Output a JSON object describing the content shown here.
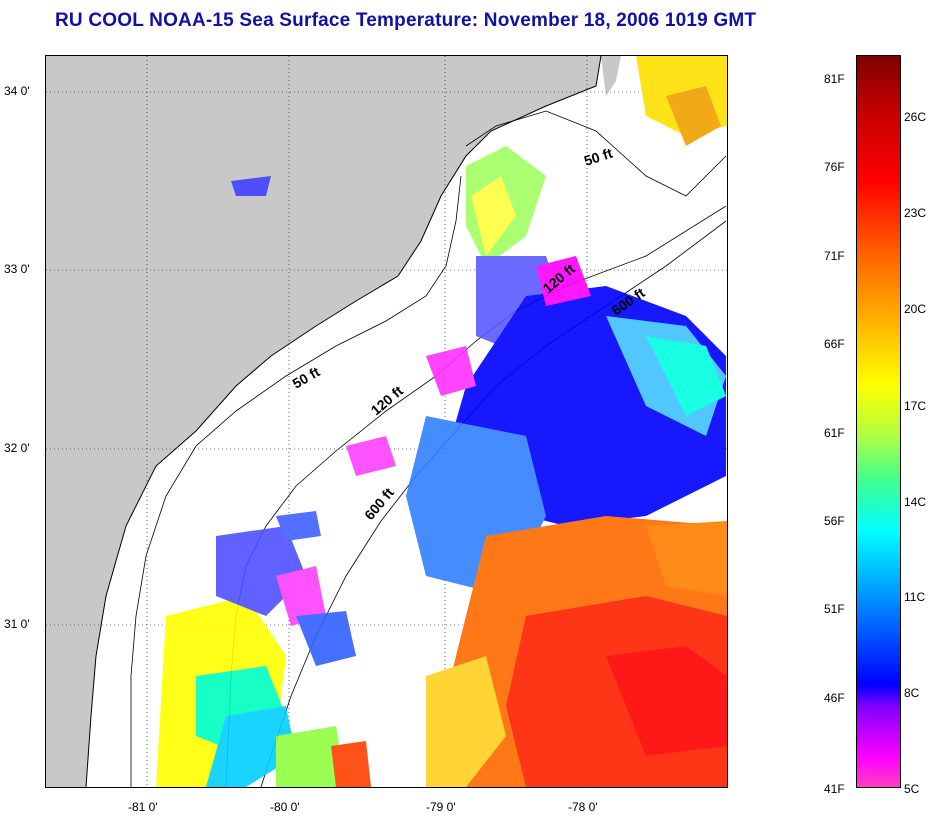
{
  "title": "RU COOL  NOAA-15  Sea Surface Temperature:  November 18, 2006 1019 GMT",
  "map": {
    "lat_ticks": [
      "34 0'",
      "33 0'",
      "32 0'",
      "31 0'"
    ],
    "lon_ticks": [
      "-81 0'",
      "-80 0'",
      "-79 0'",
      "-78 0'"
    ],
    "contour_labels": [
      "50 ft",
      "120 ft",
      "600 ft",
      "50 ft",
      "120 ft",
      "600 ft"
    ],
    "colors": {
      "land": "#c8c8c8",
      "ocean_nodata": "#ffffff",
      "coast": "#000000"
    }
  },
  "colorbar": {
    "fahrenheit": [
      "81F",
      "76F",
      "71F",
      "66F",
      "61F",
      "56F",
      "51F",
      "46F",
      "41F"
    ],
    "celsius": [
      "26C",
      "23C",
      "20C",
      "17C",
      "14C",
      "11C",
      "8C",
      "5C"
    ]
  }
}
